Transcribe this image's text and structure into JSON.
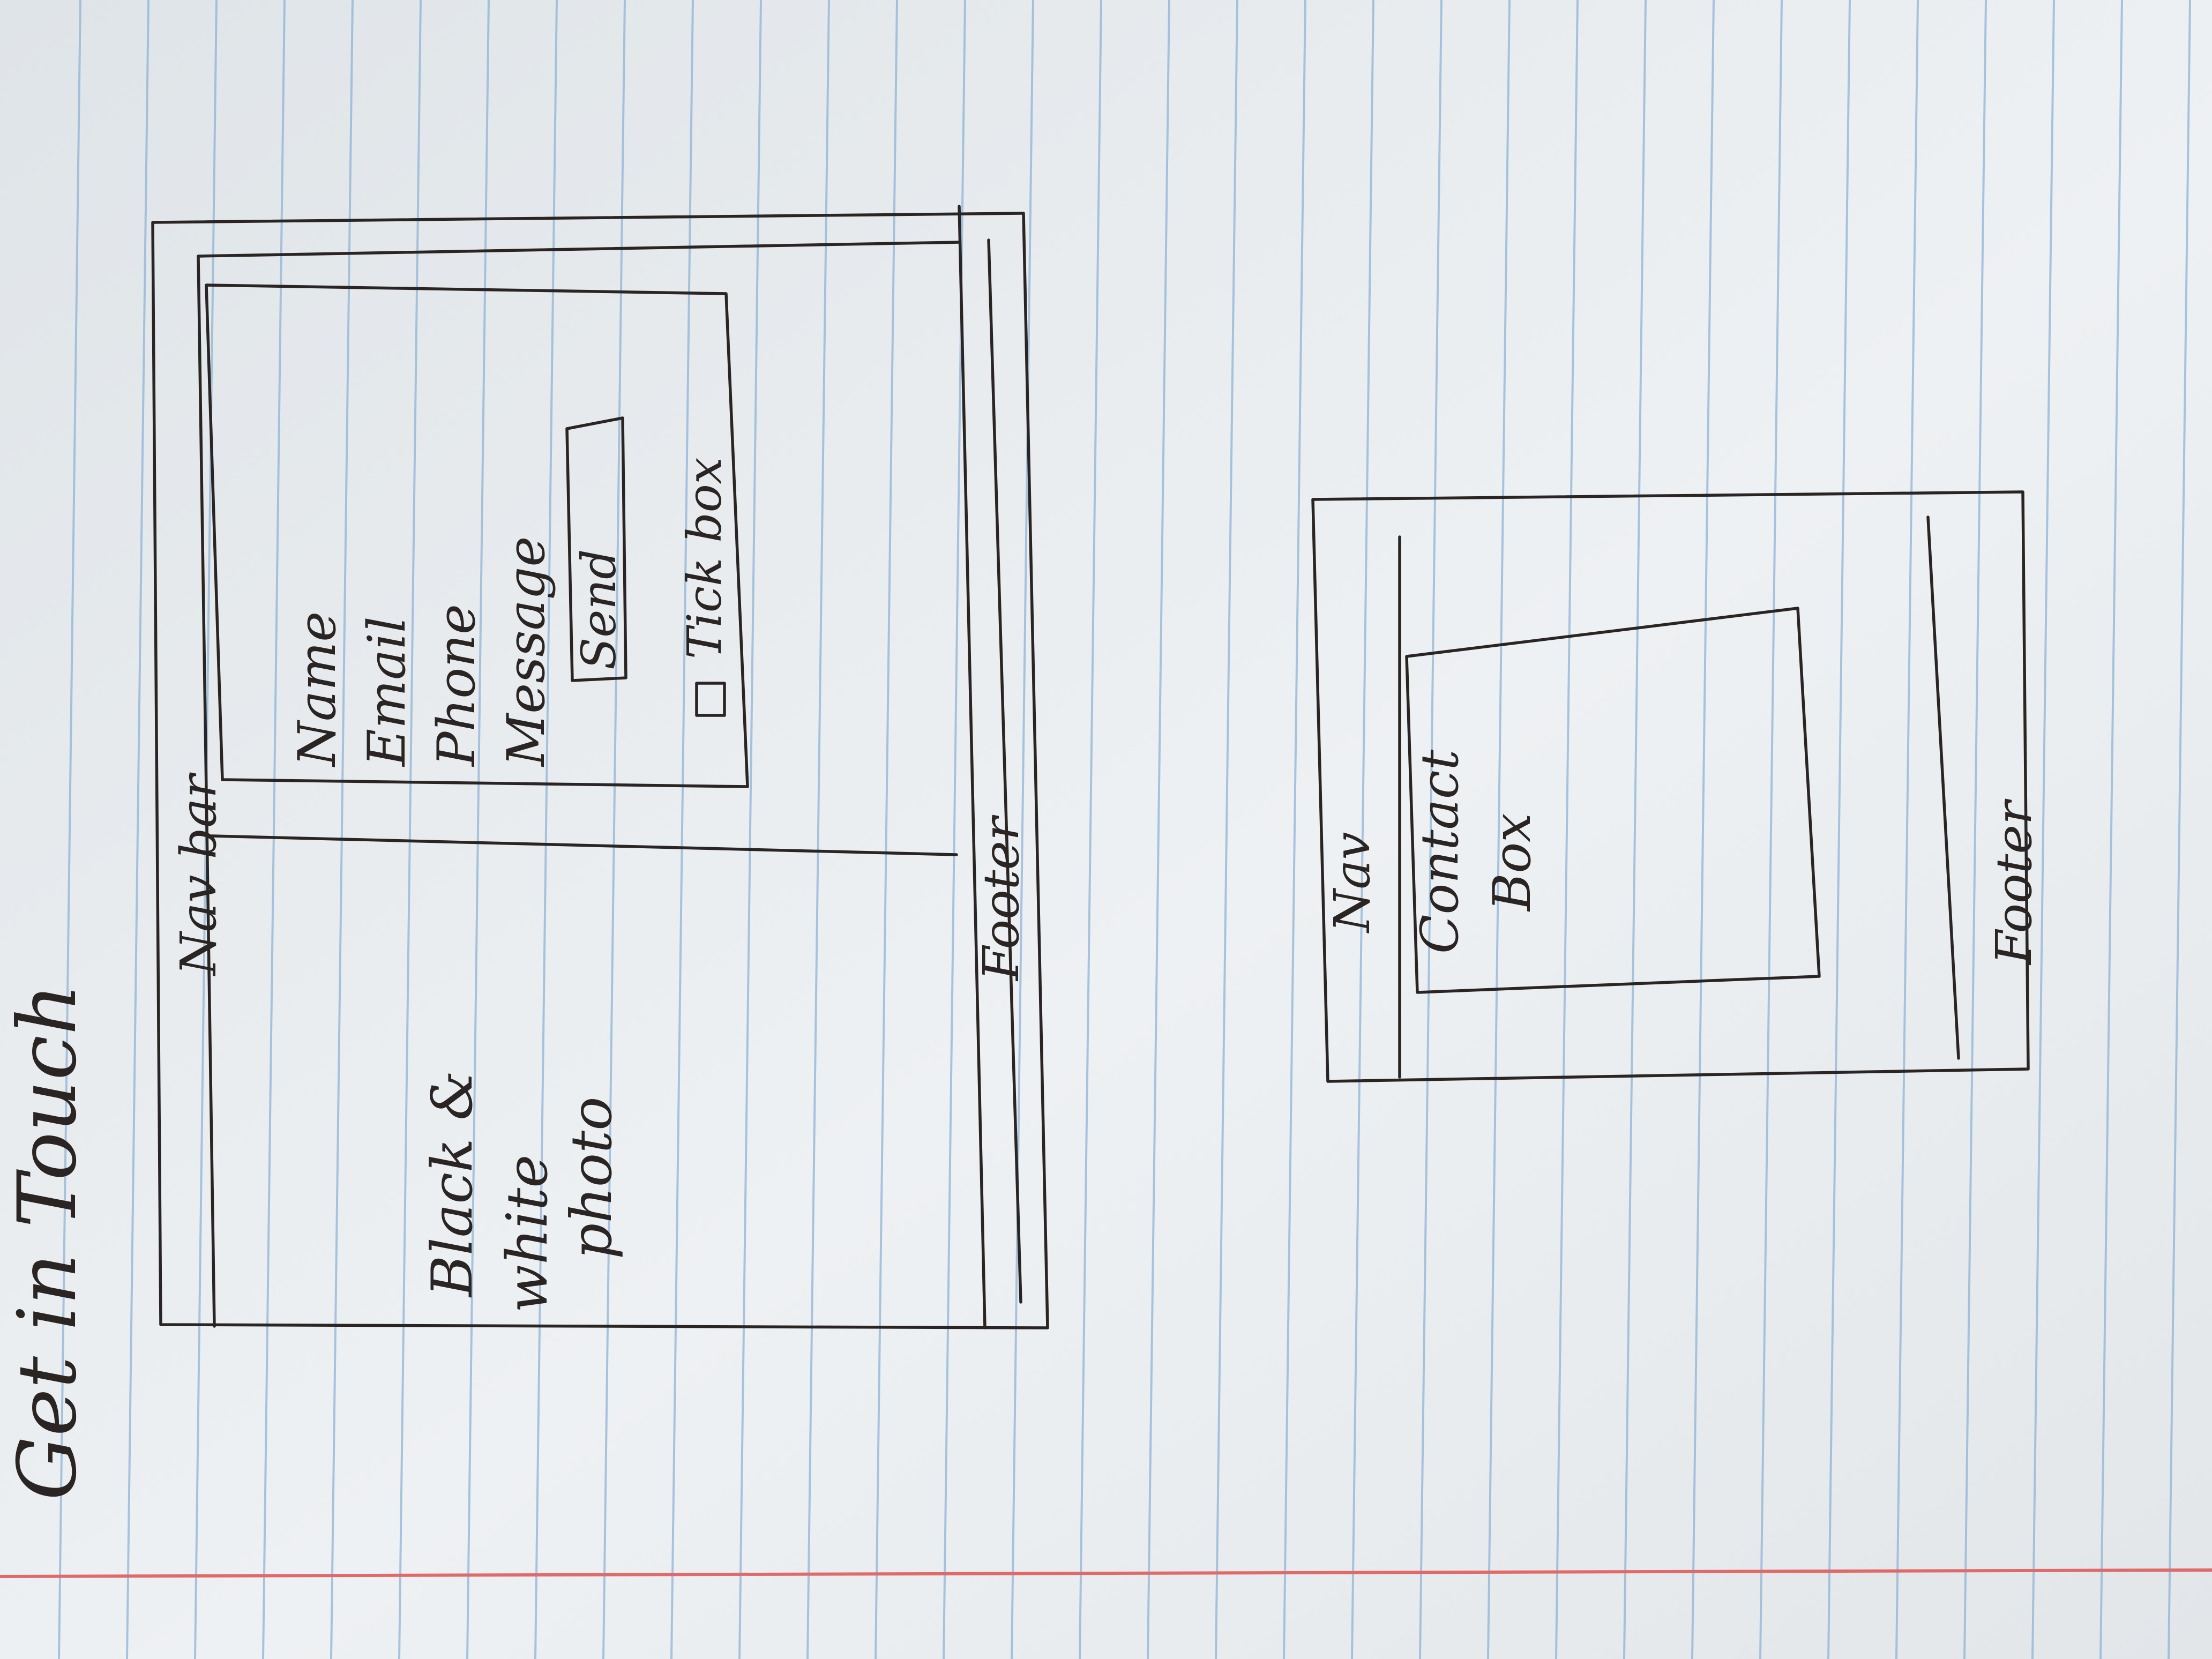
{
  "page_title": "Get in Touch",
  "desktop_sketch": {
    "nav_label": "Nav bar",
    "photo_label": [
      "Black &",
      "white",
      "photo"
    ],
    "form_fields": [
      "Name",
      "Email",
      "Phone",
      "Message"
    ],
    "send_button": "Send",
    "tick_box_label": "Tick box",
    "footer_label": "Footer"
  },
  "mobile_sketch": {
    "nav_label": "Nav",
    "content_label": [
      "Contact",
      "Box"
    ],
    "footer_label": "Footer"
  },
  "colors": {
    "paper": "#e8ecef",
    "rule_line": "#8fb3d6",
    "margin_line": "#e06a6a",
    "ink": "#2a2422"
  }
}
